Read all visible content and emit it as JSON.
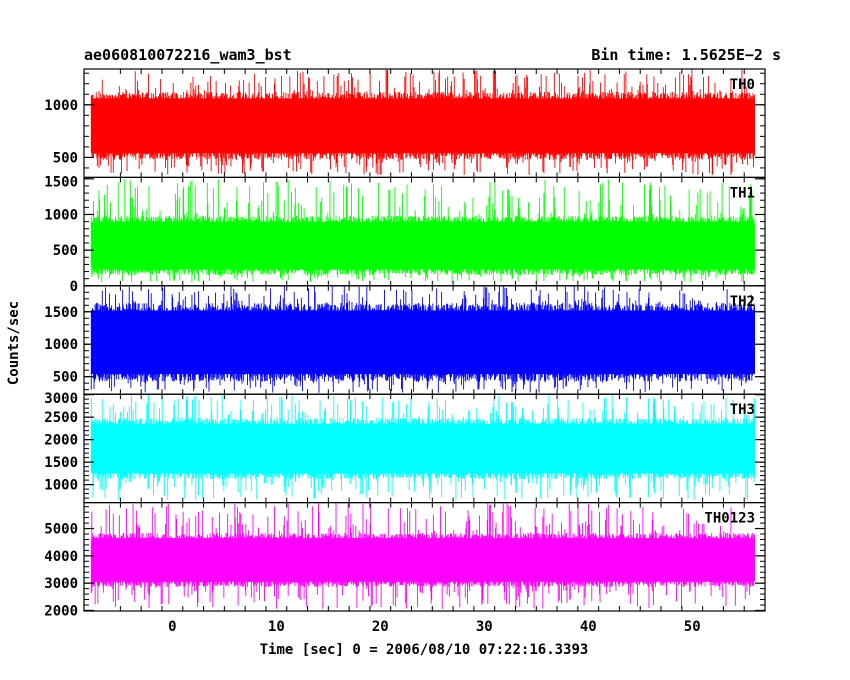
{
  "header": {
    "title": "ae060810072216_wam3_bst",
    "bin_time": "Bin time: 1.5625E−2 s"
  },
  "chart_data": {
    "type": "line",
    "title": "ae060810072216_wam3_bst",
    "xlabel": "Time [sec] 0 = 2006/08/10 07:22:16.3393",
    "ylabel": "Counts/sec",
    "xlim": [
      -8.5,
      57
    ],
    "data_range": [
      -7.8,
      56
    ],
    "xticks": [
      0,
      10,
      20,
      30,
      40,
      50
    ],
    "xtick_labels": [
      "0",
      "10",
      "20",
      "30",
      "40",
      "50"
    ],
    "grid": false,
    "panels": [
      {
        "name": "TH0",
        "color": "#ff0000",
        "ylim": [
          310,
          1340
        ],
        "yticks": [
          500,
          1000
        ],
        "ytick_labels": [
          "500",
          "1000"
        ],
        "band": {
          "low": 540,
          "high": 1060,
          "min": 330,
          "max": 1340
        }
      },
      {
        "name": "TH1",
        "color": "#00ff00",
        "ylim": [
          0,
          1520
        ],
        "yticks": [
          0,
          500,
          1000,
          1500
        ],
        "ytick_labels": [
          "0",
          "500",
          "1000",
          "1500"
        ],
        "band": {
          "low": 230,
          "high": 900,
          "min": 50,
          "max": 1500
        }
      },
      {
        "name": "TH2",
        "color": "#0000ff",
        "ylim": [
          230,
          1900
        ],
        "yticks": [
          500,
          1000,
          1500
        ],
        "ytick_labels": [
          "500",
          "1000",
          "1500"
        ],
        "band": {
          "low": 540,
          "high": 1520,
          "min": 250,
          "max": 1900
        }
      },
      {
        "name": "TH3",
        "color": "#00ffff",
        "ylim": [
          600,
          3010
        ],
        "yticks": [
          1000,
          1500,
          2000,
          2500,
          3000
        ],
        "ytick_labels": [
          "1000",
          "1500",
          "2000",
          "2500",
          "3000"
        ],
        "band": {
          "low": 1250,
          "high": 2350,
          "min": 650,
          "max": 3000
        }
      },
      {
        "name": "TH0123",
        "color": "#ff00ff",
        "ylim": [
          1980,
          5950
        ],
        "yticks": [
          2000,
          3000,
          4000,
          5000
        ],
        "ytick_labels": [
          "2000",
          "3000",
          "4000",
          "5000"
        ],
        "band": {
          "low": 3050,
          "high": 4650,
          "min": 2050,
          "max": 5950
        }
      }
    ]
  }
}
